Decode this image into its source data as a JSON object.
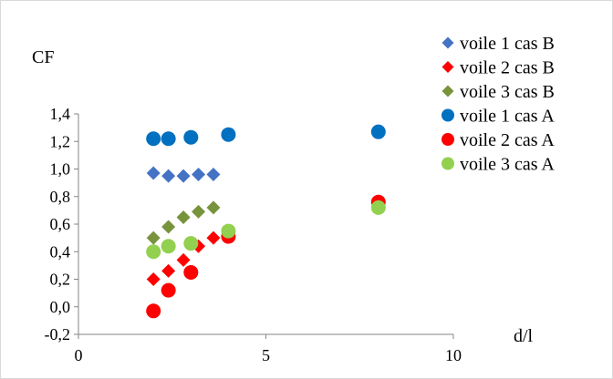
{
  "chart_data": {
    "type": "scatter",
    "title": "",
    "xlabel": "d/l",
    "ylabel": "CF",
    "xlim": [
      0,
      10
    ],
    "ylim": [
      -0.2,
      1.4
    ],
    "x_ticks": [
      0,
      5,
      10
    ],
    "x_tick_labels": [
      "0",
      "5",
      "10"
    ],
    "y_ticks": [
      -0.2,
      0.0,
      0.2,
      0.4,
      0.6,
      0.8,
      1.0,
      1.2,
      1.4
    ],
    "y_tick_labels": [
      "-0,2",
      "0,0",
      "0,2",
      "0,4",
      "0,6",
      "0,8",
      "1,0",
      "1,2",
      "1,4"
    ],
    "grid": false,
    "legend_position": "right",
    "series": [
      {
        "name": "voile 1 cas B",
        "marker": "diamond",
        "color": "#4472C4",
        "points": [
          [
            2.0,
            0.97
          ],
          [
            2.4,
            0.95
          ],
          [
            2.8,
            0.95
          ],
          [
            3.2,
            0.96
          ],
          [
            3.6,
            0.96
          ]
        ]
      },
      {
        "name": "voile 2 cas B",
        "marker": "diamond",
        "color": "#FF0000",
        "points": [
          [
            2.0,
            0.2
          ],
          [
            2.4,
            0.26
          ],
          [
            2.8,
            0.34
          ],
          [
            3.2,
            0.44
          ],
          [
            3.6,
            0.5
          ]
        ]
      },
      {
        "name": "voile 3 cas B",
        "marker": "diamond",
        "color": "#77933C",
        "points": [
          [
            2.0,
            0.5
          ],
          [
            2.4,
            0.58
          ],
          [
            2.8,
            0.65
          ],
          [
            3.2,
            0.69
          ],
          [
            3.6,
            0.72
          ]
        ]
      },
      {
        "name": "voile 1 cas A",
        "marker": "circle",
        "color": "#0070C0",
        "points": [
          [
            2.0,
            1.22
          ],
          [
            2.4,
            1.22
          ],
          [
            3.0,
            1.23
          ],
          [
            4.0,
            1.25
          ],
          [
            8.0,
            1.27
          ]
        ]
      },
      {
        "name": "voile 2 cas A",
        "marker": "circle",
        "color": "#FF0000",
        "points": [
          [
            2.0,
            -0.03
          ],
          [
            2.4,
            0.12
          ],
          [
            3.0,
            0.25
          ],
          [
            4.0,
            0.51
          ],
          [
            8.0,
            0.76
          ]
        ]
      },
      {
        "name": "voile 3 cas A",
        "marker": "circle",
        "color": "#92D050",
        "points": [
          [
            2.0,
            0.4
          ],
          [
            2.4,
            0.44
          ],
          [
            3.0,
            0.46
          ],
          [
            4.0,
            0.55
          ],
          [
            8.0,
            0.72
          ]
        ]
      }
    ]
  }
}
